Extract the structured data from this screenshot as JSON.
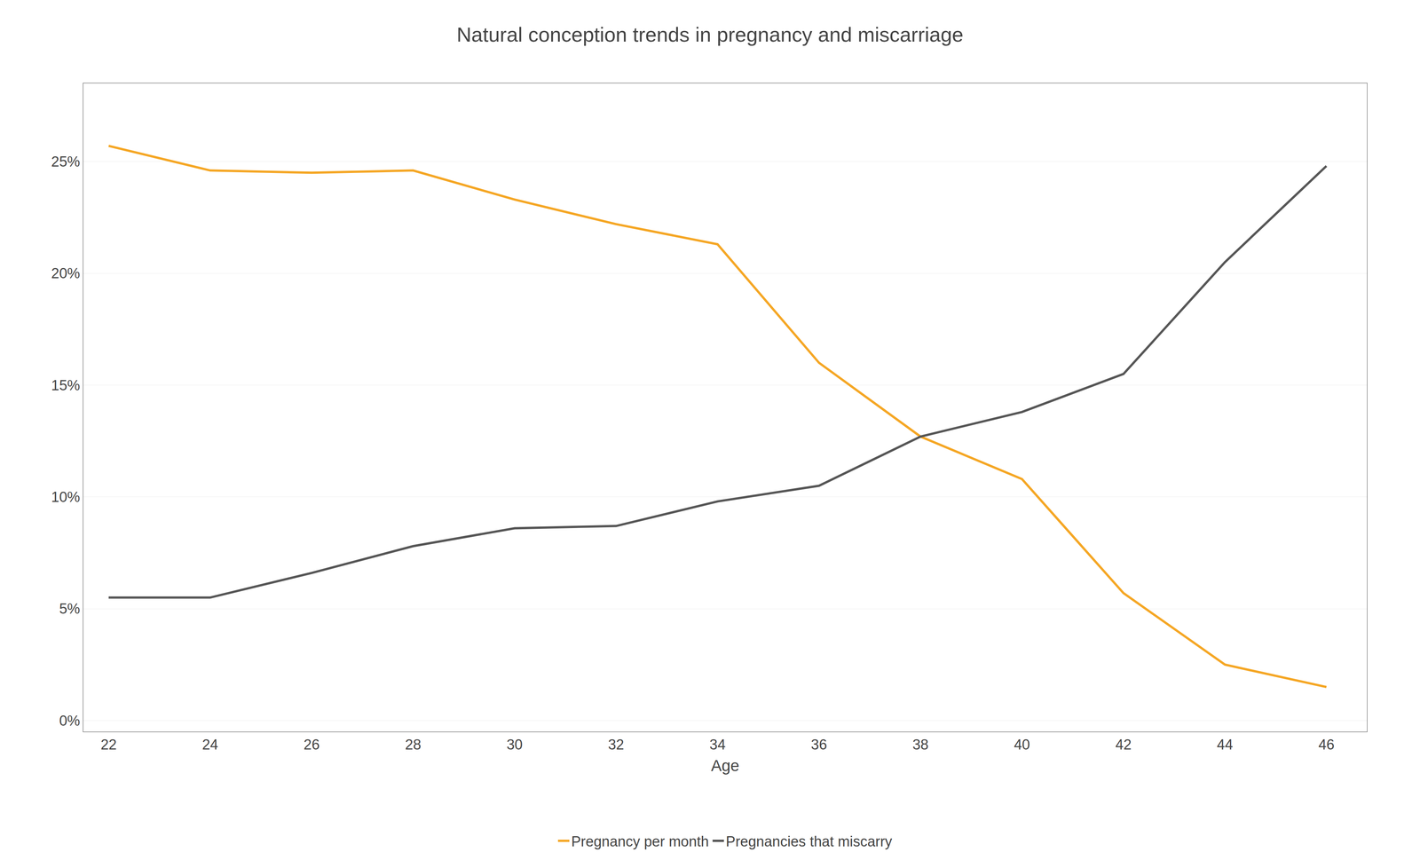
{
  "chart_data": {
    "type": "line",
    "title": "Natural conception trends in pregnancy and miscarriage",
    "xlabel": "Age",
    "x": [
      22,
      24,
      26,
      28,
      30,
      32,
      34,
      36,
      38,
      40,
      42,
      44,
      46
    ],
    "series": [
      {
        "name": "Pregnancy per month",
        "color": "#f5a623",
        "values": [
          0.257,
          0.246,
          0.245,
          0.246,
          0.233,
          0.222,
          0.213,
          0.16,
          0.127,
          0.108,
          0.057,
          0.025,
          0.015
        ]
      },
      {
        "name": "Pregnancies that miscarry",
        "color": "#555555",
        "values": [
          0.055,
          0.055,
          0.066,
          0.078,
          0.086,
          0.087,
          0.098,
          0.105,
          0.127,
          0.138,
          0.155,
          0.205,
          0.248
        ]
      }
    ],
    "xlim": [
      21.5,
      46.8
    ],
    "xticks": [
      22,
      24,
      26,
      28,
      30,
      32,
      34,
      36,
      38,
      40,
      42,
      44,
      46
    ],
    "ylim": [
      -0.005,
      0.285
    ],
    "yticks": [
      {
        "value": 0.0,
        "label": "0%"
      },
      {
        "value": 0.05,
        "label": "5%"
      },
      {
        "value": 0.1,
        "label": "10%"
      },
      {
        "value": 0.15,
        "label": "15%"
      },
      {
        "value": 0.2,
        "label": "20%"
      },
      {
        "value": 0.25,
        "label": "25%"
      }
    ],
    "grid": "y",
    "legend": "bottom"
  }
}
